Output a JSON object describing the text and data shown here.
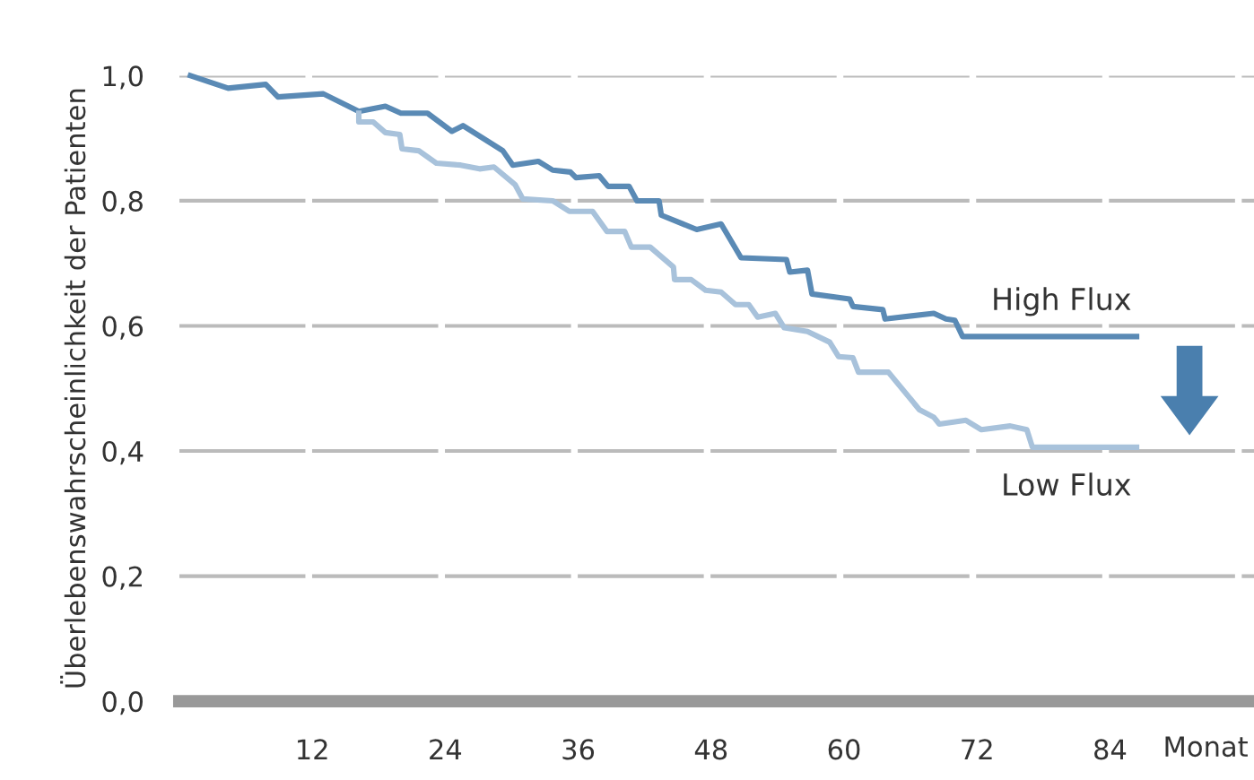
{
  "chart_data": {
    "type": "line",
    "ylabel": "Überlebenswahrscheinlichkeit der Patienten",
    "xlabel": "Monat",
    "xlim": [
      0,
      97
    ],
    "xticks": [
      12,
      24,
      36,
      48,
      60,
      72,
      84
    ],
    "ylim": [
      0,
      1.0
    ],
    "yticks": [
      {
        "value": 0,
        "label": "0,0"
      },
      {
        "value": 0.2,
        "label": "0,2"
      },
      {
        "value": 0.4,
        "label": "0,4"
      },
      {
        "value": 0.6,
        "label": "0,6"
      },
      {
        "value": 0.8,
        "label": "0,8"
      },
      {
        "value": 1.0,
        "label": "1,0"
      }
    ],
    "grid": "y",
    "legend": false,
    "marker": "none",
    "line_style": "solid",
    "series": [
      {
        "name": "High Flux",
        "color": "#5a8ab5",
        "x": [
          1,
          4.4,
          7.8,
          8.9,
          13,
          16.2,
          18.6,
          20,
          22.4,
          24.6,
          25.6,
          29.2,
          30.1,
          32.4,
          33.7,
          35.3,
          35.8,
          37.9,
          38.7,
          40.6,
          41.3,
          43.3,
          43.5,
          46.7,
          48.9,
          50.7,
          54.8,
          55.1,
          56.7,
          57.1,
          60.5,
          60.8,
          63.5,
          63.7,
          68.1,
          69.2,
          70,
          70.7,
          86.4
        ],
        "values": [
          1.0,
          0.98,
          0.986,
          0.966,
          0.971,
          0.943,
          0.951,
          0.94,
          0.94,
          0.911,
          0.92,
          0.88,
          0.857,
          0.863,
          0.849,
          0.846,
          0.837,
          0.84,
          0.823,
          0.823,
          0.8,
          0.8,
          0.777,
          0.754,
          0.763,
          0.709,
          0.706,
          0.686,
          0.689,
          0.651,
          0.643,
          0.631,
          0.626,
          0.611,
          0.62,
          0.611,
          0.609,
          0.583,
          0.583
        ]
      },
      {
        "name": "Low Flux",
        "color": "#a8c2db",
        "x": [
          16.2,
          16.2,
          17.5,
          18.6,
          19.9,
          20.1,
          21.6,
          23.2,
          25.4,
          27.1,
          28.4,
          30.3,
          31,
          33.7,
          35.2,
          37.3,
          38.6,
          40.2,
          40.8,
          42.5,
          44.6,
          44.7,
          46.2,
          47.5,
          48.9,
          50.2,
          51.4,
          52.2,
          53.8,
          54.6,
          56.7,
          58.7,
          59.5,
          60.8,
          61.3,
          64,
          66.8,
          68.1,
          68.6,
          71,
          72.4,
          75,
          76.5,
          77,
          86.4
        ],
        "values": [
          0.94,
          0.926,
          0.926,
          0.909,
          0.906,
          0.883,
          0.88,
          0.86,
          0.857,
          0.851,
          0.854,
          0.826,
          0.803,
          0.8,
          0.783,
          0.783,
          0.751,
          0.751,
          0.726,
          0.726,
          0.694,
          0.674,
          0.674,
          0.657,
          0.654,
          0.634,
          0.634,
          0.614,
          0.62,
          0.597,
          0.591,
          0.574,
          0.551,
          0.549,
          0.526,
          0.526,
          0.466,
          0.454,
          0.443,
          0.449,
          0.434,
          0.44,
          0.434,
          0.406,
          0.406
        ]
      }
    ]
  }
}
